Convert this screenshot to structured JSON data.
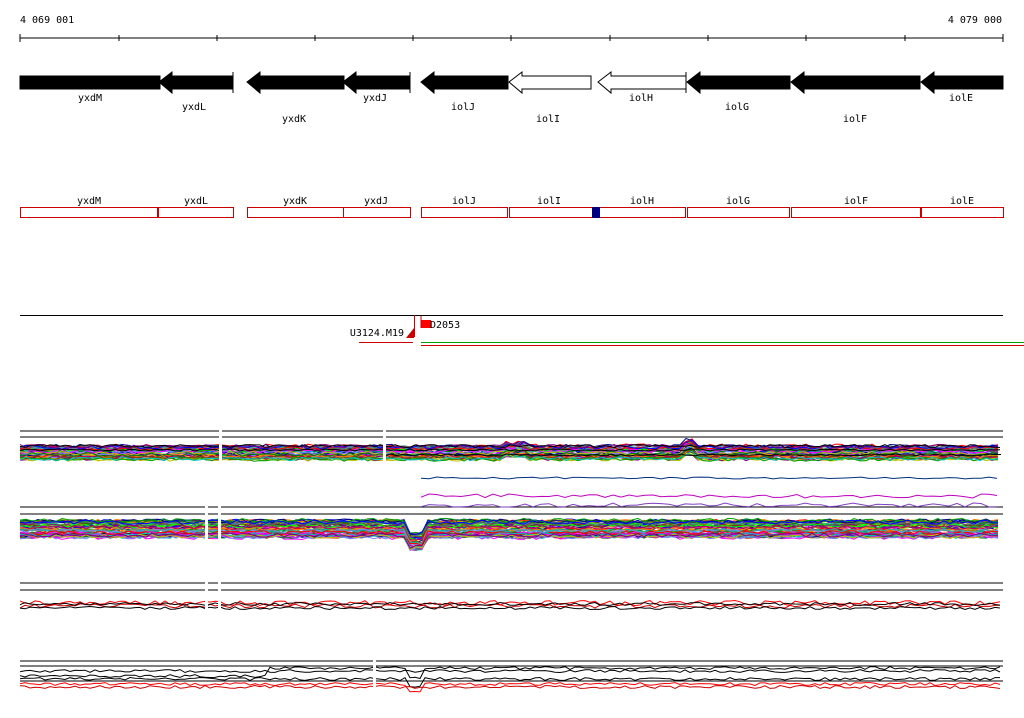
{
  "ruler": {
    "start_label": "4 069 001",
    "end_label": "4 079 000"
  },
  "genes": [
    {
      "name": "yxdM",
      "strand": "+",
      "filled": true
    },
    {
      "name": "yxdL",
      "strand": "-",
      "filled": true
    },
    {
      "name": "yxdK",
      "strand": "-",
      "filled": true
    },
    {
      "name": "yxdJ",
      "strand": "-",
      "filled": true
    },
    {
      "name": "iolJ",
      "strand": "-",
      "filled": true
    },
    {
      "name": "iolI",
      "strand": "-",
      "filled": false
    },
    {
      "name": "iolH",
      "strand": "-",
      "filled": false
    },
    {
      "name": "iolG",
      "strand": "-",
      "filled": true
    },
    {
      "name": "iolF",
      "strand": "-",
      "filled": true
    },
    {
      "name": "iolE",
      "strand": "-",
      "filled": true
    }
  ],
  "feature_boxes": [
    "yxdM",
    "yxdL",
    "yxdK",
    "yxdJ",
    "iolJ",
    "iolI",
    "iolH",
    "iolG",
    "iolF",
    "iolE"
  ],
  "transcripts": {
    "left_label": "U3124.M19",
    "right_label": "D2053"
  },
  "colors": {
    "gene_fill": "#000000",
    "box_outline": "#cc0000",
    "box_marker": "#000080",
    "transcript_red": "#cc0000",
    "transcript_green": "#00a000"
  }
}
